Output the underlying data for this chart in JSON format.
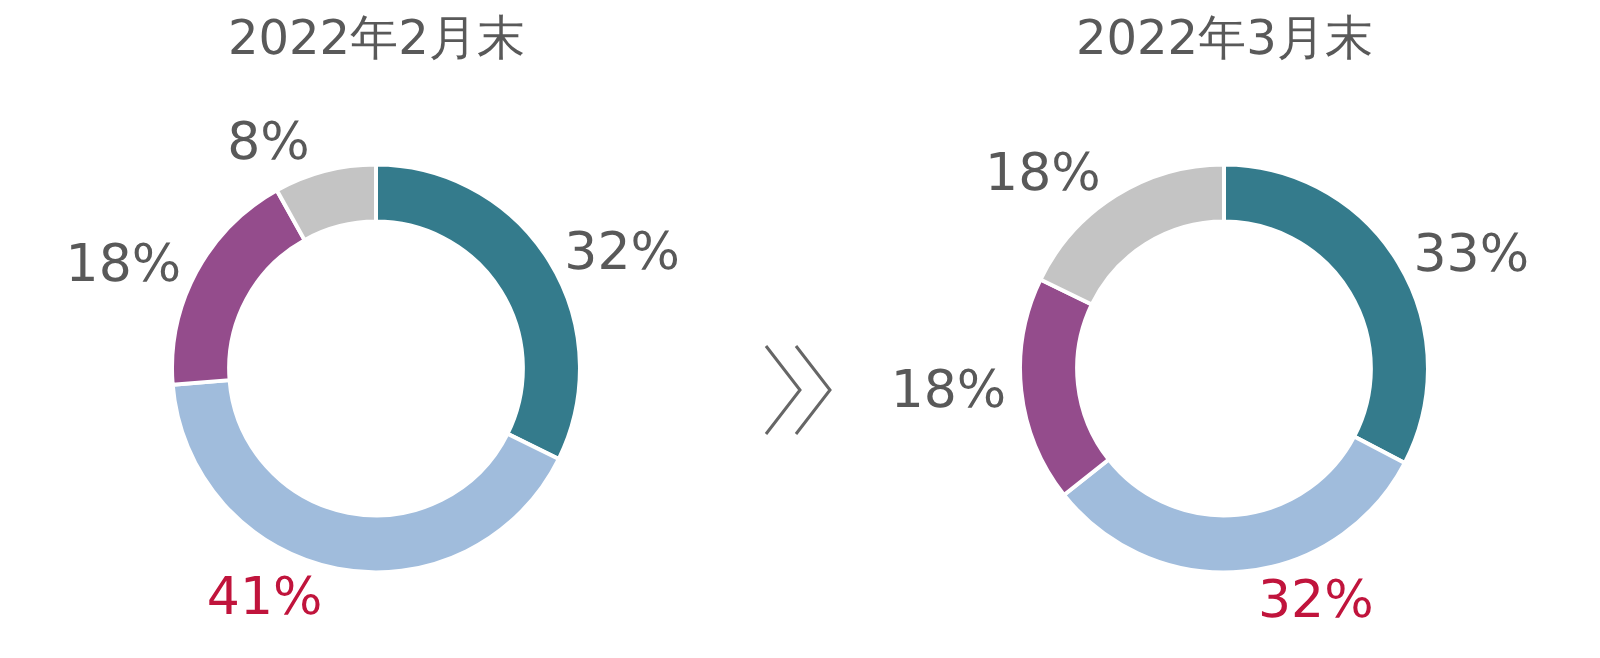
{
  "chart_data": [
    {
      "type": "donut",
      "title": "2022年2月末",
      "categories": [
        null,
        null,
        null,
        null
      ],
      "values": [
        32,
        41,
        18,
        8
      ],
      "colors": [
        "#347b8c",
        "#a0bcdc",
        "#944c8c",
        "#c4c4c4"
      ],
      "value_labels": [
        "32%",
        "41%",
        "18%",
        "8%"
      ]
    },
    {
      "type": "donut",
      "title": "2022年3月末",
      "categories": [
        null,
        null,
        null,
        null
      ],
      "values": [
        33,
        32,
        18,
        18
      ],
      "colors": [
        "#347b8c",
        "#a0bcdc",
        "#944c8c",
        "#c4c4c4"
      ],
      "value_labels": [
        "33%",
        "32%",
        "18%",
        "18%"
      ]
    }
  ]
}
